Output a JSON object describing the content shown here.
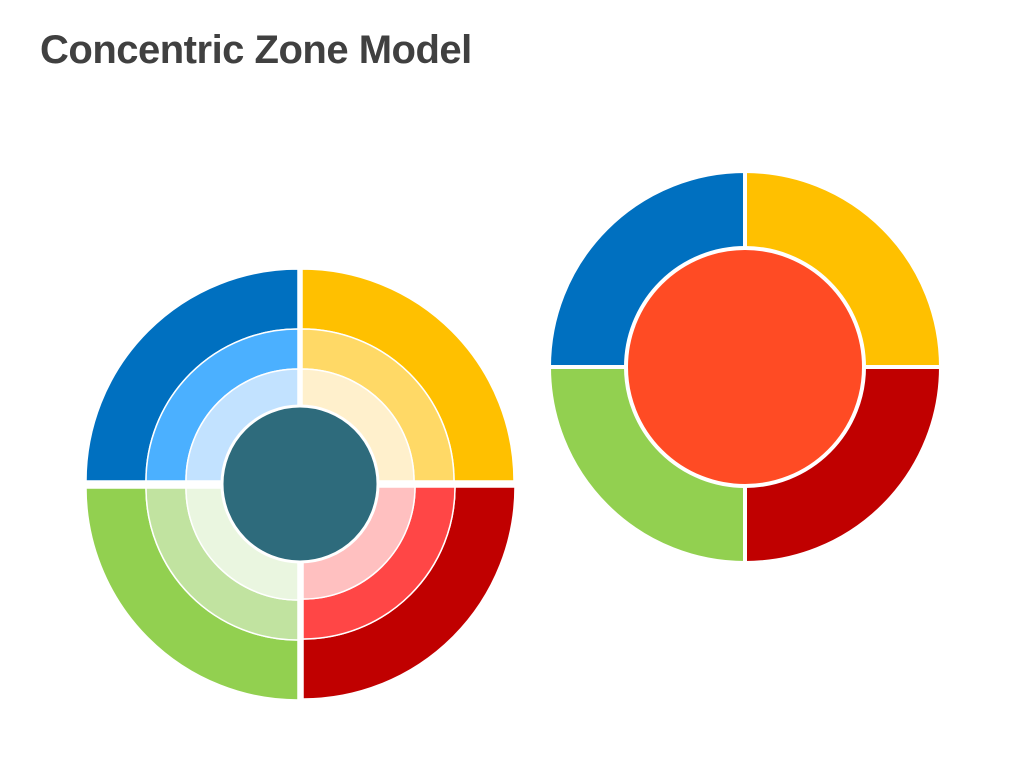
{
  "title": "Concentric Zone Model",
  "colors": {
    "background": "#FFFFFF",
    "title": "#404040",
    "separator": "#FFFFFF",
    "blue": "#0070C0",
    "yellow": "#FFC000",
    "red": "#C00000",
    "green": "#92D050",
    "core_teal": "#2E6B7C",
    "core_orange": "#FF4B24"
  },
  "diagrams": [
    {
      "name": "four-quadrant-layered-rings",
      "core_color": "#2E6B7C",
      "quadrants": [
        {
          "name": "top-left",
          "color": "#0070C0",
          "shades": [
            "#0070C0",
            "#4BB0FF",
            "#C2E2FF"
          ]
        },
        {
          "name": "top-right",
          "color": "#FFC000",
          "shades": [
            "#FFC000",
            "#FFD966",
            "#FFF0CC"
          ]
        },
        {
          "name": "bottom-right",
          "color": "#C00000",
          "shades": [
            "#C00000",
            "#FF4646",
            "#FFC0C0"
          ]
        },
        {
          "name": "bottom-left",
          "color": "#92D050",
          "shades": [
            "#92D050",
            "#C1E3A0",
            "#EAF6E0"
          ]
        }
      ]
    },
    {
      "name": "four-quadrant-single-ring",
      "core_color": "#FF4B24",
      "quadrants": [
        {
          "name": "top-left",
          "color": "#0070C0"
        },
        {
          "name": "top-right",
          "color": "#FFC000"
        },
        {
          "name": "bottom-right",
          "color": "#C00000"
        },
        {
          "name": "bottom-left",
          "color": "#92D050"
        }
      ]
    }
  ]
}
